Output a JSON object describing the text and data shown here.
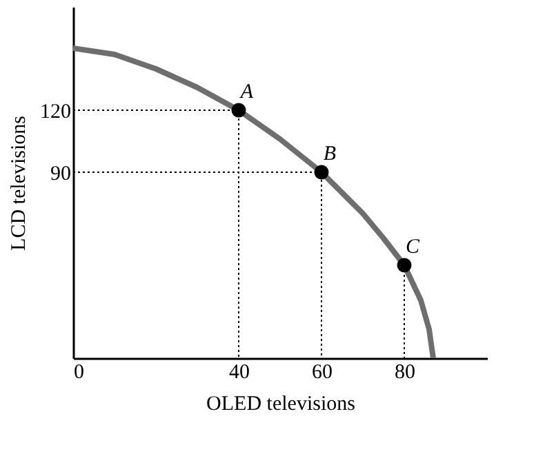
{
  "chart_data": {
    "type": "line",
    "xlabel": "OLED televisions",
    "ylabel": "LCD televisions",
    "xlim": [
      0,
      100
    ],
    "xticks": [
      0,
      40,
      60,
      80
    ],
    "ylim": [
      0,
      170
    ],
    "yticks": [
      90,
      120
    ],
    "grid": false,
    "series": [
      {
        "color": "#000000",
        "line_style": "dotted",
        "x": [
          0,
          40,
          40
        ],
        "values": [
          120,
          120,
          0
        ]
      },
      {
        "color": "#000000",
        "line_style": "dotted",
        "x": [
          0,
          60,
          60
        ],
        "values": [
          90,
          90,
          0
        ]
      },
      {
        "color": "#000000",
        "line_style": "dotted",
        "x": [
          80,
          80
        ],
        "values": [
          45,
          0
        ]
      },
      {
        "color": "#6e6e6e",
        "line_style": "solid",
        "x": [
          0,
          10,
          20,
          30,
          40,
          50,
          60,
          70,
          75,
          80,
          84,
          86,
          87
        ],
        "values": [
          150,
          147,
          140,
          131,
          120,
          106,
          90,
          70,
          58,
          45,
          28,
          14,
          0
        ]
      },
      {
        "type": "scatter",
        "color": "#000000",
        "marker": "circle",
        "x": [
          40,
          60,
          80
        ],
        "values": [
          120,
          90,
          45
        ]
      }
    ],
    "annotations": [
      {
        "text": "A",
        "x": 40,
        "y": 120
      },
      {
        "text": "B",
        "x": 60,
        "y": 90
      },
      {
        "text": "C",
        "x": 80,
        "y": 45
      }
    ]
  }
}
